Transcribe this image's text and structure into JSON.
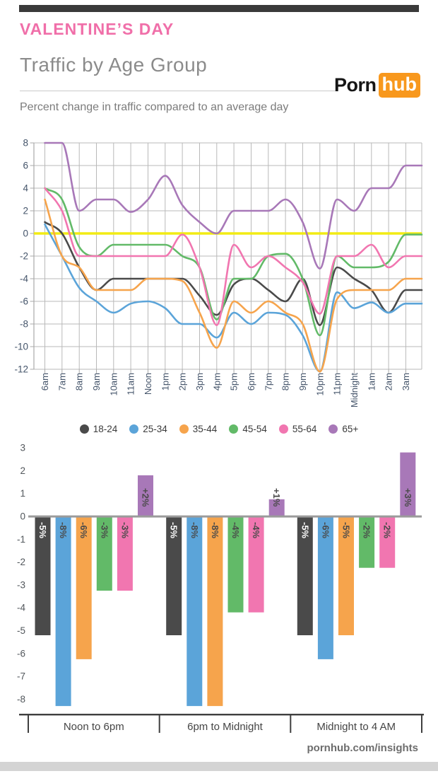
{
  "header": {
    "banner_title": "VALENTINE’S DAY",
    "page_title": "Traffic by Age Group",
    "subtitle": "Percent change in traffic compared to an average day",
    "logo": {
      "part1": "Porn",
      "part2": "hub"
    }
  },
  "footer": {
    "site_label": "pornhub.com/insights"
  },
  "colors": {
    "banner_pink": "#f06fa9",
    "logo_orange": "#f8981d",
    "top_bar": "#3a3a3a",
    "grid": "#b9b9b9",
    "spine": "#a9a9a9",
    "zero_line_yellow": "#f2ec13",
    "axis_label_blue": "#44546a",
    "bar_axis_label": "#52575c",
    "bar_baseline": "#9b9b9b",
    "bottom_axis": "#3f3f3f",
    "series": {
      "18-24": "#4a4a4a",
      "25-34": "#5ba4d9",
      "35-44": "#f6a44c",
      "45-54": "#62ba68",
      "55-64": "#f176b0",
      "65+": "#a878b8"
    }
  },
  "legend": [
    {
      "label": "18-24",
      "color": "#4a4a4a"
    },
    {
      "label": "25-34",
      "color": "#5ba4d9"
    },
    {
      "label": "35-44",
      "color": "#f6a44c"
    },
    {
      "label": "45-54",
      "color": "#62ba68"
    },
    {
      "label": "55-64",
      "color": "#f176b0"
    },
    {
      "label": "65+",
      "color": "#a878b8"
    }
  ],
  "chart_data": [
    {
      "type": "line",
      "title": "Percent change in traffic compared to an average day",
      "x": [
        "6am",
        "7am",
        "8am",
        "9am",
        "10am",
        "11am",
        "Noon",
        "1pm",
        "2pm",
        "3pm",
        "4pm",
        "5pm",
        "6pm",
        "7pm",
        "8pm",
        "9pm",
        "10pm",
        "11pm",
        "Midnight",
        "1am",
        "2am",
        "3am"
      ],
      "ylim": [
        -12,
        8
      ],
      "yticks": [
        8,
        6,
        4,
        2,
        0,
        -2,
        -4,
        -6,
        -8,
        -10,
        -12
      ],
      "zero_line": true,
      "grid": true,
      "series": [
        {
          "name": "18-24",
          "color": "#4a4a4a",
          "values": [
            1,
            0,
            -3,
            -5,
            -4,
            -4,
            -4,
            -4,
            -4,
            -5.5,
            -7.2,
            -4.5,
            -4,
            -5,
            -6,
            -4,
            -8.1,
            -3,
            -4,
            -5,
            -7,
            -5
          ]
        },
        {
          "name": "25-34",
          "color": "#5ba4d9",
          "values": [
            0.8,
            -2,
            -4.8,
            -6,
            -7,
            -6.2,
            -6,
            -6.6,
            -8,
            -8,
            -9.2,
            -7,
            -8,
            -7,
            -7.2,
            -9,
            -12.2,
            -5.2,
            -6.6,
            -6.1,
            -7,
            -6.2
          ]
        },
        {
          "name": "35-44",
          "color": "#f6a44c",
          "values": [
            3,
            -2,
            -3,
            -5,
            -5,
            -5,
            -4,
            -4,
            -4.2,
            -7,
            -10.1,
            -6,
            -7,
            -6,
            -7,
            -8,
            -12.2,
            -5.8,
            -5,
            -5,
            -5,
            -4
          ]
        },
        {
          "name": "45-54",
          "color": "#62ba68",
          "values": [
            4,
            3,
            -1.2,
            -2,
            -1,
            -1,
            -1,
            -1,
            -2,
            -3,
            -7.6,
            -4,
            -4,
            -2,
            -1.8,
            -4,
            -9,
            -2,
            -3,
            -3,
            -2.5,
            -0.1
          ]
        },
        {
          "name": "55-64",
          "color": "#f176b0",
          "values": [
            4,
            2,
            -2,
            -2,
            -2,
            -2,
            -2,
            -2,
            -0.1,
            -3,
            -8.1,
            -1,
            -3,
            -2,
            -3,
            -4.3,
            -7.1,
            -2,
            -2,
            -1,
            -3,
            -2
          ]
        },
        {
          "name": "65+",
          "color": "#a878b8",
          "values": [
            8,
            8,
            2,
            3,
            3,
            1.9,
            3,
            5.1,
            2.5,
            1,
            0,
            2,
            2,
            2,
            3,
            1,
            -3.1,
            3,
            2,
            4,
            4,
            6
          ]
        }
      ]
    },
    {
      "type": "bar",
      "categories": [
        "Noon to 6pm",
        "6pm to Midnight",
        "Midnight to 4 AM"
      ],
      "ylim": [
        -8.5,
        3
      ],
      "yticks": [
        3,
        2,
        1,
        0,
        -1,
        -2,
        -3,
        -4,
        -5,
        -6,
        -7,
        -8
      ],
      "grid": false,
      "series": [
        {
          "name": "18-24",
          "color": "#4a4a4a",
          "label_color": "#ffffff",
          "values": [
            -5.2,
            -5.2,
            -5.2
          ],
          "labels": [
            "-5%",
            "-5%",
            "-5%"
          ]
        },
        {
          "name": "25-34",
          "color": "#5ba4d9",
          "label_color": "#4a4a4a",
          "values": [
            -8.3,
            -8.3,
            -6.25
          ],
          "labels": [
            "-8%",
            "-8%",
            "-6%"
          ]
        },
        {
          "name": "35-44",
          "color": "#f6a44c",
          "label_color": "#4a4a4a",
          "values": [
            -6.25,
            -8.3,
            -5.2
          ],
          "labels": [
            "-6%",
            "-8%",
            "-5%"
          ]
        },
        {
          "name": "45-54",
          "color": "#62ba68",
          "label_color": "#4a4a4a",
          "values": [
            -3.25,
            -4.2,
            -2.25
          ],
          "labels": [
            "-3%",
            "-4%",
            "-2%"
          ]
        },
        {
          "name": "55-64",
          "color": "#f176b0",
          "label_color": "#4a4a4a",
          "values": [
            -3.25,
            -4.2,
            -2.25
          ],
          "labels": [
            "-3%",
            "-4%",
            "-2%"
          ]
        },
        {
          "name": "65+",
          "color": "#a878b8",
          "label_color": "#4a4a4a",
          "values": [
            1.8,
            0.75,
            2.8
          ],
          "labels": [
            "+2%",
            "+1%",
            "+3%"
          ]
        }
      ]
    }
  ]
}
